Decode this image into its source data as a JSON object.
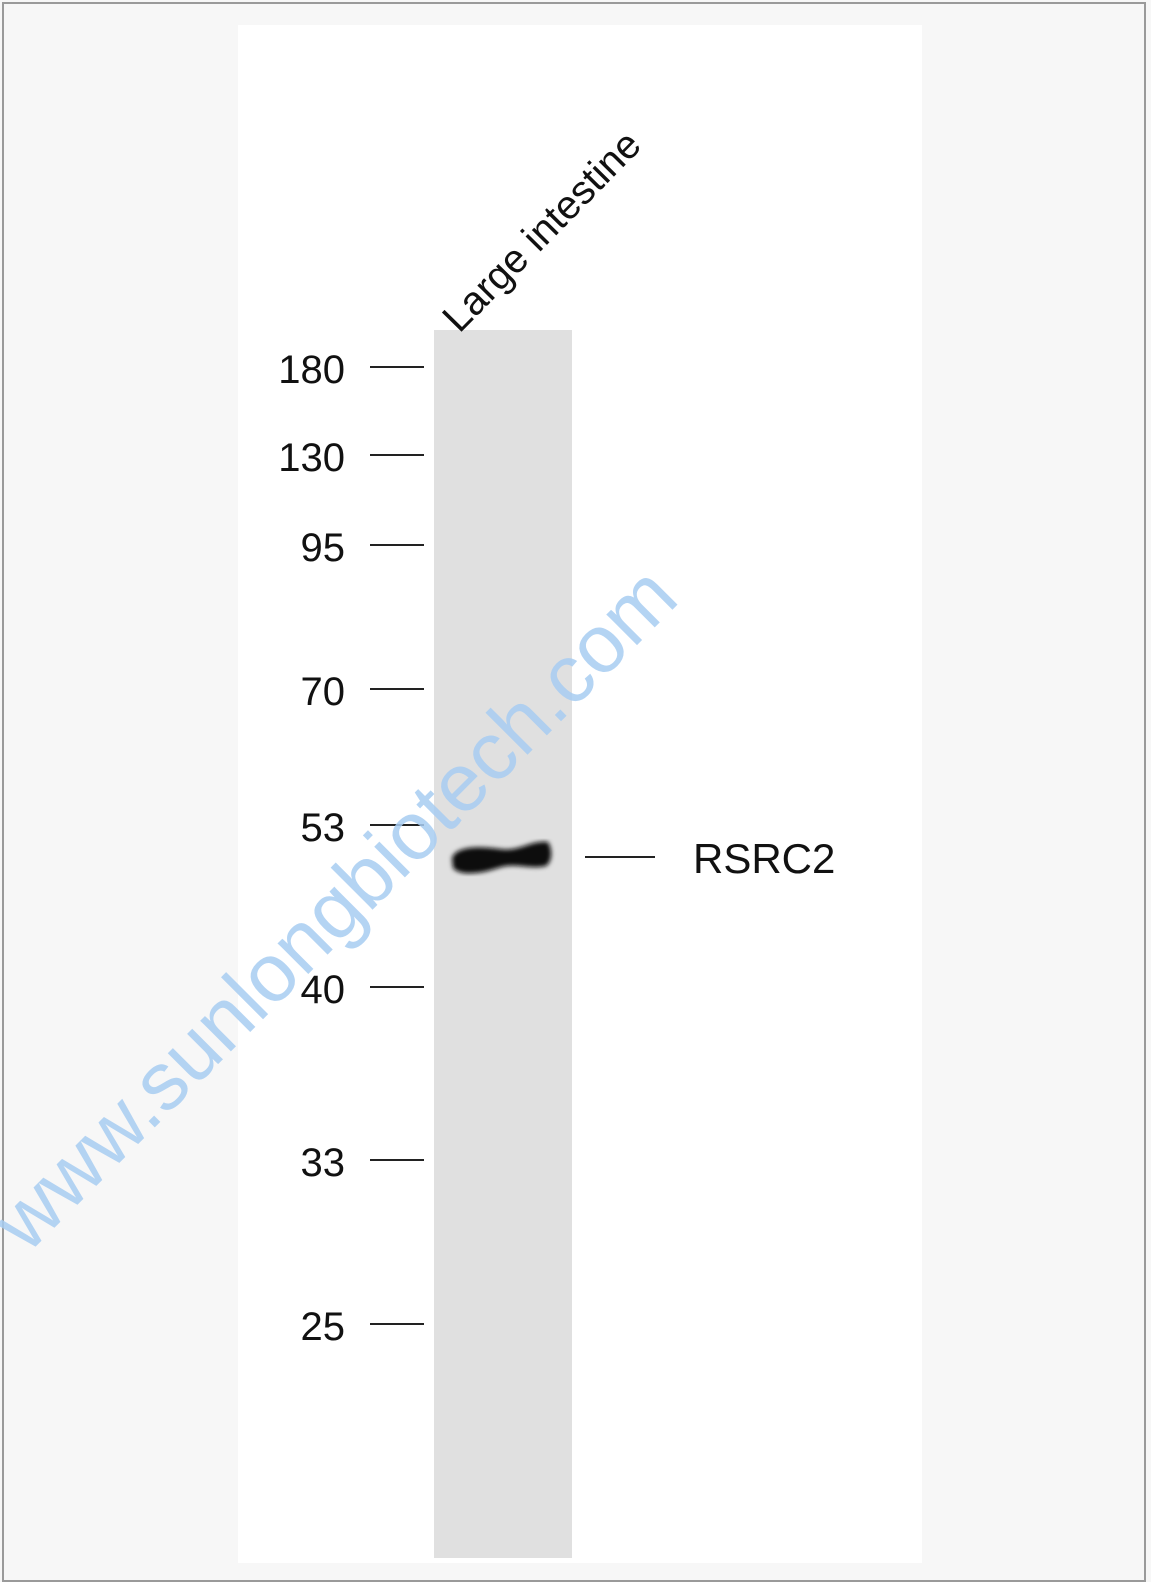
{
  "figure": {
    "lane_label": "Large intestine",
    "markers": [
      "180",
      "130",
      "95",
      "70",
      "53",
      "40",
      "33",
      "25"
    ],
    "band_label": "RSRC2",
    "watermark": "www.sunlongbiotech.com"
  }
}
